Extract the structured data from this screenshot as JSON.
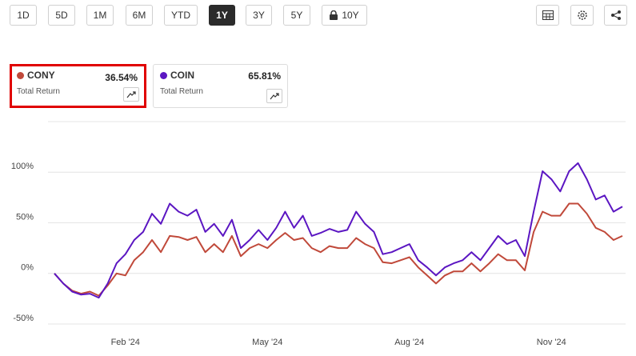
{
  "toolbar": {
    "ranges": [
      "1D",
      "5D",
      "1M",
      "6M",
      "YTD",
      "1Y",
      "3Y",
      "5Y",
      "10Y"
    ],
    "selected": "1Y"
  },
  "cards": [
    {
      "value": "36.54%",
      "label": "Total Return",
      "highlighted": true
    },
    {
      "value": "65.81%",
      "label": "Total Return",
      "highlighted": false
    }
  ],
  "chart_data": {
    "type": "line",
    "categories": [
      null,
      null,
      null,
      null,
      null,
      null,
      null,
      null,
      "Feb '24",
      null,
      null,
      null,
      null,
      null,
      null,
      null,
      null,
      null,
      null,
      null,
      null,
      null,
      null,
      null,
      "May '24",
      null,
      null,
      null,
      null,
      null,
      null,
      null,
      null,
      null,
      null,
      null,
      null,
      null,
      null,
      null,
      "Aug '24",
      null,
      null,
      null,
      null,
      null,
      null,
      null,
      null,
      null,
      null,
      null,
      null,
      null,
      null,
      null,
      "Nov '24",
      null,
      null,
      null,
      null,
      null,
      null,
      null,
      null
    ],
    "series": [
      {
        "name": "CONY",
        "color": "#c0493a",
        "values": [
          0,
          -10,
          -17,
          -20,
          -18,
          -22,
          -12,
          0,
          -2,
          13,
          21,
          33,
          21,
          37,
          36,
          33,
          36,
          21,
          29,
          21,
          37,
          17,
          25,
          29,
          25,
          33,
          40,
          33,
          35,
          25,
          21,
          27,
          25,
          25,
          35,
          29,
          25,
          11,
          10,
          13,
          16,
          6,
          -2,
          -10,
          -2,
          2,
          2,
          10,
          2,
          10,
          19,
          13,
          13,
          3,
          41,
          61,
          57,
          57,
          69,
          69,
          59,
          45,
          41,
          33,
          37
        ]
      },
      {
        "name": "COIN",
        "color": "#5b16c2",
        "values": [
          0,
          -10,
          -18,
          -21,
          -20,
          -24,
          -10,
          10,
          19,
          33,
          41,
          59,
          49,
          69,
          61,
          57,
          63,
          41,
          49,
          37,
          53,
          25,
          33,
          43,
          33,
          45,
          61,
          45,
          57,
          37,
          40,
          44,
          41,
          43,
          61,
          49,
          41,
          19,
          21,
          25,
          29,
          13,
          6,
          -2,
          6,
          10,
          13,
          21,
          13,
          25,
          37,
          29,
          33,
          17,
          61,
          101,
          93,
          81,
          101,
          109,
          93,
          73,
          77,
          61,
          66
        ]
      }
    ],
    "ylim": [
      -50,
      150
    ],
    "yticks": [
      {
        "value": -50,
        "label": "-50%"
      },
      {
        "value": 0,
        "label": "0%"
      },
      {
        "value": 50,
        "label": "50%"
      },
      {
        "value": 100,
        "label": "100%"
      }
    ],
    "grid": true
  }
}
